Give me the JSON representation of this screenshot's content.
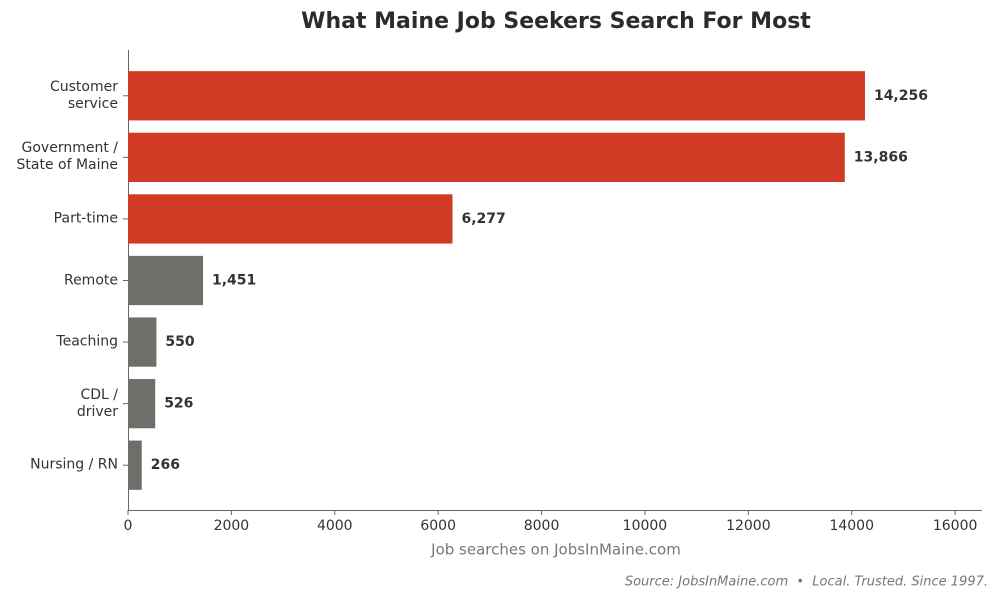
{
  "chart_data": {
    "type": "barh",
    "title": "What Maine Job Seekers Search For Most",
    "categories": [
      "Customer\nservice",
      "Government /\nState of Maine",
      "Part-time",
      "Remote",
      "Teaching",
      "CDL /\ndriver",
      "Nursing / RN"
    ],
    "values": [
      14256,
      13866,
      6277,
      1451,
      550,
      526,
      266
    ],
    "value_labels": [
      "14,256",
      "13,866",
      "6,277",
      "1,451",
      "550",
      "526",
      "266"
    ],
    "colors": [
      "#d13b26",
      "#d13b26",
      "#d13b26",
      "#706e6b",
      "#706e6b",
      "#706e6b",
      "#706e6b"
    ],
    "xlim": [
      0,
      16520
    ],
    "xticks": [
      0,
      2000,
      4000,
      6000,
      8000,
      10000,
      12000,
      14000,
      16000
    ],
    "xlabel": "Job searches on JobsInMaine.com",
    "source": "Source: JobsInMaine.com  •  Local. Trusted. Since 1997."
  }
}
